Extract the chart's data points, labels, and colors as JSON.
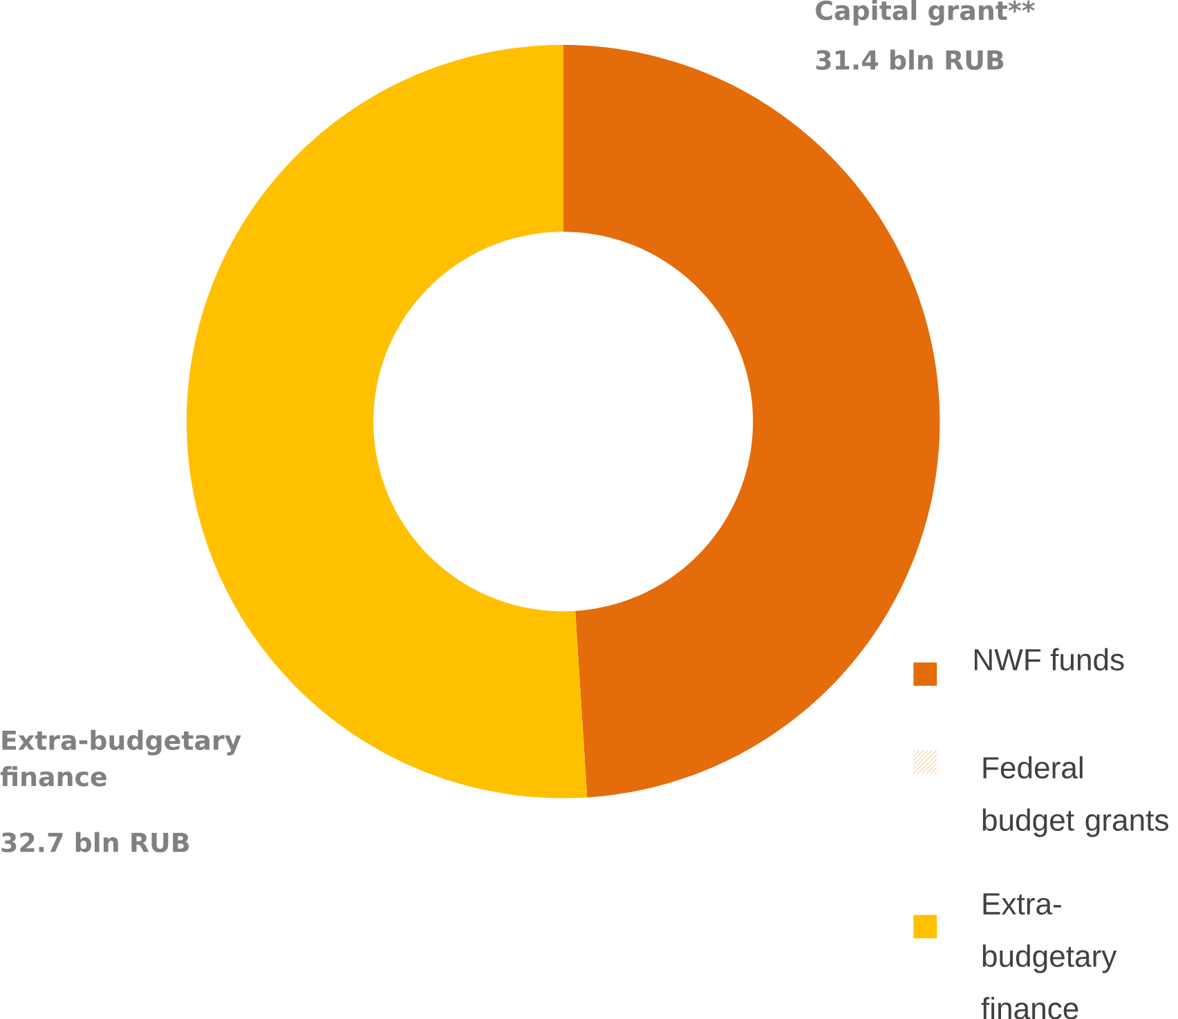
{
  "chart_data": {
    "type": "donut",
    "categories": [
      "NWF funds",
      "Federal budget grants",
      "Extra-budgetary finance"
    ],
    "values": [
      31.4,
      null,
      32.7
    ],
    "value_labels": [
      "31.4 bln RUB",
      null,
      "32.7 bln RUB"
    ],
    "colors": [
      "#e46c0a",
      "#f4a460",
      "#ffc000"
    ],
    "legend": "bottom right",
    "annotations": [
      "Capital grant**",
      "Extra-budgetary finance"
    ]
  }
}
